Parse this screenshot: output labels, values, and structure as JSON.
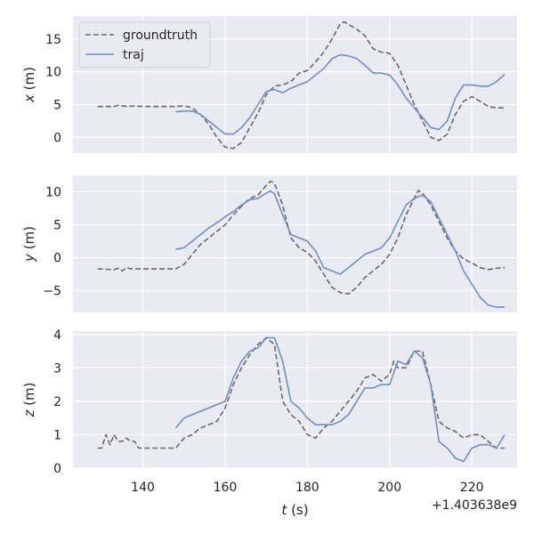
{
  "chart_data": {
    "type": "line",
    "shared_x": {
      "label": "$t$ (s)",
      "label_display": "t (s)",
      "xlim": [
        123,
        231
      ],
      "ticks": [
        140,
        160,
        180,
        200,
        220
      ],
      "tick_labels": [
        "140",
        "160",
        "180",
        "200",
        "220"
      ],
      "offset_label": "+1.403638e9"
    },
    "grid": true,
    "legend_position": "top-left",
    "legend": [
      {
        "name": "groundtruth",
        "color": "#6a6a6a",
        "dash": "dashed"
      },
      {
        "name": "traj",
        "color": "#6f8fc8",
        "dash": "solid"
      }
    ],
    "subplots": [
      {
        "id": "x",
        "ylabel_display": "x (m)",
        "ylim": [
          -2.4,
          18.5
        ],
        "yticks": [
          0,
          5,
          10,
          15
        ],
        "ytick_labels": [
          "0",
          "5",
          "10",
          "15"
        ],
        "series": [
          {
            "name": "groundtruth",
            "x": [
              129,
              133,
              134,
              136,
              138,
              140,
              144,
              148,
              150,
              152,
              154,
              156,
              158,
              160,
              162,
              164,
              166,
              168,
              170,
              172,
              174,
              176,
              178,
              180,
              182,
              184,
              186,
              188,
              189,
              190,
              192,
              194,
              196,
              198,
              200,
              202,
              204,
              206,
              208,
              210,
              212,
              214,
              216,
              218,
              220,
              222,
              224,
              226,
              228
            ],
            "y": [
              4.7,
              4.7,
              4.9,
              4.7,
              4.8,
              4.7,
              4.7,
              4.7,
              4.8,
              4.5,
              3.5,
              2.0,
              0.0,
              -1.5,
              -1.7,
              -0.8,
              1.5,
              3.7,
              6.5,
              7.8,
              8.0,
              8.5,
              9.8,
              10.2,
              11.5,
              13.0,
              15.0,
              17.3,
              17.6,
              17.2,
              16.5,
              15.5,
              13.5,
              13.0,
              12.8,
              11.0,
              8.0,
              5.0,
              2.5,
              0.0,
              -0.5,
              0.5,
              3.5,
              5.5,
              6.2,
              5.5,
              4.7,
              4.5,
              4.5
            ]
          },
          {
            "name": "traj",
            "x": [
              148,
              150,
              152,
              154,
              156,
              158,
              160,
              162,
              164,
              166,
              168,
              170,
              172,
              174,
              176,
              178,
              180,
              182,
              184,
              186,
              188,
              189,
              190,
              192,
              194,
              196,
              198,
              200,
              202,
              204,
              206,
              208,
              210,
              212,
              214,
              216,
              218,
              220,
              222,
              224,
              226,
              228
            ],
            "y": [
              3.9,
              4.0,
              4.0,
              3.5,
              2.5,
              1.5,
              0.5,
              0.5,
              1.5,
              3.0,
              5.0,
              7.0,
              7.3,
              6.8,
              7.5,
              8.0,
              8.5,
              9.5,
              10.5,
              12.0,
              12.6,
              12.5,
              12.4,
              12.0,
              11.0,
              9.8,
              9.8,
              9.5,
              8.0,
              6.0,
              4.5,
              3.0,
              1.5,
              1.2,
              2.5,
              6.0,
              8.0,
              8.0,
              7.8,
              7.8,
              8.5,
              9.6
            ]
          }
        ]
      },
      {
        "id": "y",
        "ylabel_display": "y (m)",
        "ylim": [
          -8.3,
          12.5
        ],
        "yticks": [
          -5,
          0,
          5,
          10
        ],
        "ytick_labels": [
          "−5",
          "0",
          "5",
          "10"
        ],
        "series": [
          {
            "name": "groundtruth",
            "x": [
              129,
              133,
              134,
              135,
              136,
              137,
              138,
              140,
              144,
              148,
              150,
              152,
              154,
              156,
              158,
              160,
              162,
              164,
              166,
              168,
              170,
              171,
              172,
              174,
              176,
              178,
              180,
              182,
              184,
              186,
              188,
              190,
              192,
              194,
              196,
              198,
              200,
              202,
              204,
              206,
              207,
              208,
              210,
              212,
              214,
              216,
              218,
              220,
              222,
              224,
              226,
              228
            ],
            "y": [
              -1.7,
              -1.8,
              -1.6,
              -2.0,
              -1.5,
              -1.7,
              -1.7,
              -1.7,
              -1.7,
              -1.7,
              -1.0,
              0.5,
              2.0,
              3.0,
              4.0,
              5.0,
              6.5,
              7.8,
              9.0,
              9.5,
              11.0,
              11.6,
              11.3,
              8.0,
              3.0,
              1.5,
              0.8,
              -0.5,
              -2.5,
              -4.5,
              -5.3,
              -5.5,
              -4.5,
              -3.0,
              -2.0,
              -1.0,
              0.5,
              3.0,
              6.5,
              9.0,
              10.2,
              9.8,
              8.0,
              5.5,
              3.0,
              1.0,
              -0.2,
              -0.8,
              -1.5,
              -1.8,
              -1.6,
              -1.5
            ]
          },
          {
            "name": "traj",
            "x": [
              148,
              150,
              152,
              154,
              156,
              158,
              160,
              162,
              164,
              166,
              168,
              170,
              171,
              172,
              174,
              176,
              178,
              180,
              182,
              184,
              186,
              188,
              190,
              192,
              194,
              196,
              198,
              200,
              202,
              204,
              206,
              208,
              210,
              212,
              214,
              216,
              218,
              220,
              222,
              224,
              226,
              228
            ],
            "y": [
              1.3,
              1.5,
              2.5,
              3.5,
              4.5,
              5.3,
              6.2,
              7.0,
              8.0,
              8.8,
              9.0,
              9.8,
              10.1,
              9.7,
              6.5,
              3.5,
              3.0,
              2.5,
              1.0,
              -1.5,
              -2.0,
              -2.5,
              -1.5,
              -0.5,
              0.5,
              1.0,
              1.5,
              3.0,
              5.5,
              8.0,
              9.0,
              9.5,
              8.5,
              6.0,
              3.5,
              1.0,
              -2.0,
              -4.0,
              -6.0,
              -7.2,
              -7.5,
              -7.5
            ]
          }
        ]
      },
      {
        "id": "z",
        "ylabel_display": "z (m)",
        "ylim": [
          0,
          4.1
        ],
        "yticks": [
          0,
          1,
          2,
          3,
          4
        ],
        "ytick_labels": [
          "0",
          "1",
          "2",
          "3",
          "4"
        ],
        "series": [
          {
            "name": "groundtruth",
            "x": [
              129,
              130,
              131,
              132,
              133,
              134,
              135,
              136,
              137,
              138,
              139,
              140,
              144,
              148,
              150,
              152,
              154,
              156,
              158,
              160,
              162,
              164,
              166,
              168,
              170,
              172,
              174,
              176,
              178,
              180,
              182,
              184,
              186,
              188,
              190,
              192,
              194,
              196,
              198,
              200,
              201,
              202,
              204,
              206,
              208,
              210,
              212,
              214,
              216,
              218,
              220,
              222,
              224,
              226,
              228
            ],
            "y": [
              0.6,
              0.6,
              1.0,
              0.7,
              1.0,
              0.8,
              0.8,
              0.9,
              0.8,
              0.8,
              0.6,
              0.6,
              0.6,
              0.6,
              0.9,
              1.0,
              1.2,
              1.3,
              1.4,
              1.8,
              2.5,
              3.0,
              3.4,
              3.7,
              3.9,
              3.7,
              2.0,
              1.6,
              1.4,
              1.0,
              0.9,
              1.2,
              1.4,
              1.7,
              2.0,
              2.3,
              2.7,
              2.8,
              2.6,
              2.8,
              3.2,
              3.0,
              3.0,
              3.5,
              3.5,
              2.5,
              1.4,
              1.2,
              1.1,
              0.9,
              1.0,
              1.0,
              0.8,
              0.6,
              0.6
            ]
          },
          {
            "name": "traj",
            "x": [
              148,
              150,
              152,
              154,
              156,
              158,
              160,
              162,
              164,
              166,
              168,
              170,
              172,
              174,
              176,
              178,
              180,
              182,
              184,
              186,
              188,
              190,
              192,
              194,
              196,
              198,
              200,
              202,
              204,
              206,
              208,
              210,
              212,
              214,
              216,
              218,
              220,
              222,
              224,
              226,
              228
            ],
            "y": [
              1.2,
              1.5,
              1.6,
              1.7,
              1.8,
              1.9,
              2.0,
              2.7,
              3.2,
              3.5,
              3.6,
              3.9,
              3.9,
              3.2,
              2.0,
              1.8,
              1.5,
              1.3,
              1.3,
              1.3,
              1.4,
              1.6,
              2.0,
              2.4,
              2.4,
              2.5,
              2.5,
              3.2,
              3.1,
              3.5,
              3.3,
              2.5,
              0.8,
              0.6,
              0.3,
              0.2,
              0.6,
              0.7,
              0.7,
              0.6,
              1.0
            ]
          }
        ]
      }
    ]
  }
}
